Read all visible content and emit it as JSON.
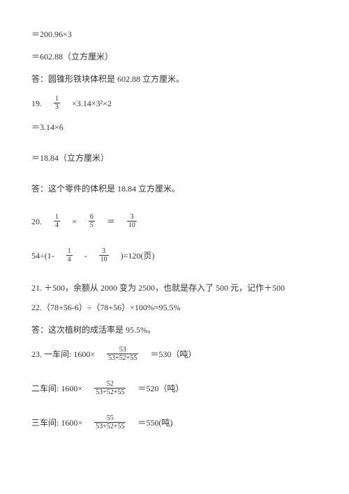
{
  "p1": "＝200.96×3",
  "p2": "＝602.88（立方厘米）",
  "p3": "答：圆锥形铁块体积是 602.88 立方厘米。",
  "p4_prefix": "19.　",
  "f1_num": "1",
  "f1_den": "3",
  "p4_suffix": "　×3.14×3²×2",
  "p5": "＝3.14×6",
  "p6": "＝18.84（立方厘米）",
  "p7": "答：这个零件的体积是 18.84 立方厘米。",
  "p8_prefix": "20.　",
  "f2_num": "1",
  "f2_den": "4",
  "p8_mid1": "　×　",
  "f3_num": "6",
  "f3_den": "5",
  "p8_mid2": "　＝　",
  "f4_num": "3",
  "f4_den": "10",
  "p9_prefix": "54÷(1-　",
  "f5_num": "1",
  "f5_den": "4",
  "p9_mid": "　-　",
  "f6_num": "3",
  "f6_den": "10",
  "p9_suffix": "　)=120(页)",
  "p10": "21. ＋500，余额从 2000 变为 2500，也就是存入了 500 元，记作＋500",
  "p11": "22.（78+56-6）÷（78+56）×100%≈95.5%",
  "p12": "答：这次植树的成活率是 95.5%。",
  "p13_prefix": "23. 一车间: 1600×　",
  "f7_num": "53",
  "f7_den": "53+52+55",
  "p13_suffix": "　＝530（吨）",
  "p14_prefix": "二车间: 1600×　",
  "f8_num": "52",
  "f8_den": "53+52+55",
  "p14_suffix": "　＝520（吨）",
  "p15_prefix": "三车间: 1600×　",
  "f9_num": "55",
  "f9_den": "53+52+55",
  "p15_suffix": "　＝550(吨)",
  "colors": {
    "background": "#ffffff",
    "text": "#333333",
    "rule": "#333333"
  },
  "fonts": {
    "body_size_pt": 12,
    "frac_size_pt": 10
  }
}
